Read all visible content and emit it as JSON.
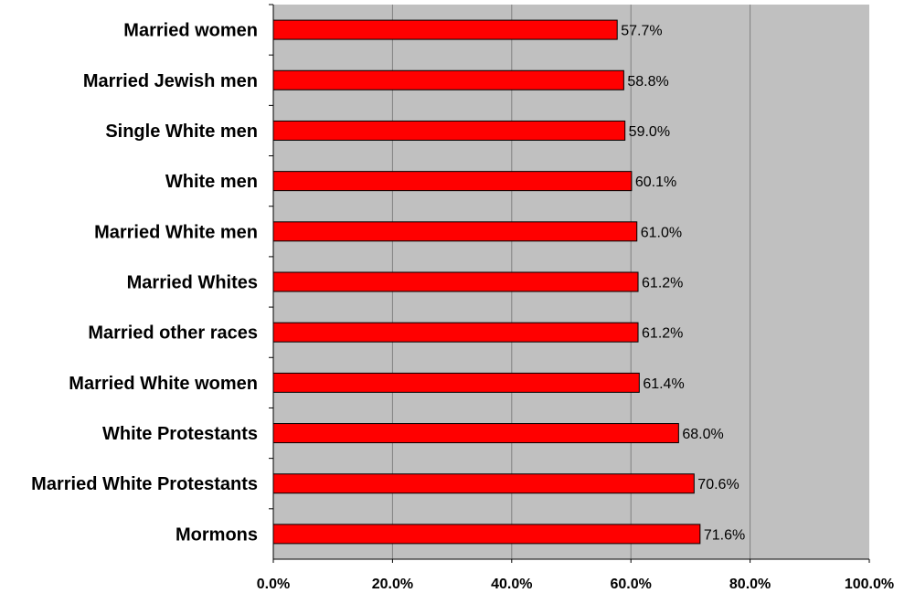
{
  "chart_data": {
    "type": "bar",
    "orientation": "horizontal",
    "categories": [
      "Married women",
      "Married Jewish men",
      "Single White men",
      "White men",
      "Married White men",
      "Married Whites",
      "Married other races",
      "Married White women",
      "White Protestants",
      "Married White Protestants",
      "Mormons"
    ],
    "values": [
      57.7,
      58.8,
      59.0,
      60.1,
      61.0,
      61.2,
      61.2,
      61.4,
      68.0,
      70.6,
      71.6
    ],
    "data_labels": [
      "57.7%",
      "58.8%",
      "59.0%",
      "60.1%",
      "61.0%",
      "61.2%",
      "61.2%",
      "61.4%",
      "68.0%",
      "70.6%",
      "71.6%"
    ],
    "x_ticks": [
      "0.0%",
      "20.0%",
      "40.0%",
      "60.0%",
      "80.0%",
      "100.0%"
    ],
    "xlim": [
      0,
      100
    ],
    "title": "",
    "xlabel": "",
    "ylabel": "",
    "grid": "vertical",
    "legend": "none",
    "colors": {
      "bar": "#ff0000",
      "bar_border": "#000000",
      "plot_background": "#c0c0c0",
      "gridline": "#808080"
    }
  }
}
